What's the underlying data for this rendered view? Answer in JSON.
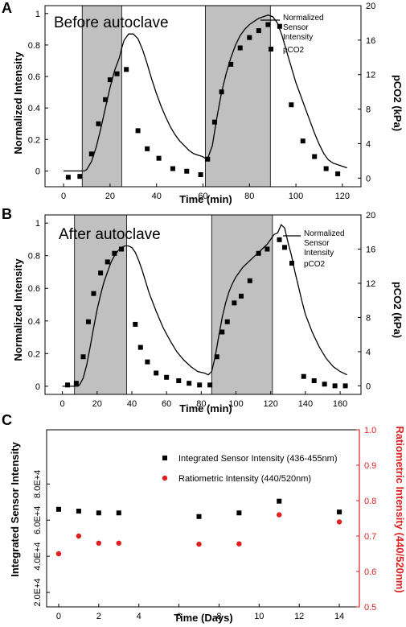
{
  "chart_data": [
    {
      "type": "line",
      "panel": "A",
      "inset_text": "Before autoclave",
      "xlabel": "Time (min)",
      "ylabel": "Normalized Intensity",
      "y2label": "pCO2 (kPa)",
      "xlim": [
        -8,
        128
      ],
      "ylim": [
        -0.1,
        1.05
      ],
      "y2lim": [
        -1,
        20
      ],
      "xticks": [
        0,
        20,
        40,
        60,
        80,
        100,
        120
      ],
      "yticks": [
        0,
        0.2,
        0.4,
        0.6,
        0.8,
        1
      ],
      "y2ticks": [
        0,
        4,
        8,
        12,
        16,
        20
      ],
      "shaded_intervals": [
        [
          8,
          25
        ],
        [
          61,
          89
        ]
      ],
      "legend_position": "top-right",
      "grid": false,
      "series": [
        {
          "name": "Normalized Sensor Intensity",
          "axis": "left",
          "style": "line",
          "x": [
            0,
            9,
            10,
            12,
            14,
            16,
            18,
            20,
            22,
            24,
            25,
            26,
            28,
            30,
            32,
            34,
            36,
            38,
            40,
            42,
            44,
            46,
            48,
            50,
            52,
            54,
            56,
            58,
            60,
            61,
            62,
            64,
            66,
            68,
            70,
            72,
            74,
            76,
            78,
            80,
            82,
            84,
            86,
            88,
            90,
            92,
            94,
            96,
            98,
            100,
            102,
            104,
            106,
            108,
            110,
            112,
            114,
            116,
            118,
            120,
            122
          ],
          "values": [
            0,
            0,
            0.01,
            0.06,
            0.15,
            0.27,
            0.4,
            0.53,
            0.64,
            0.72,
            0.78,
            0.83,
            0.87,
            0.87,
            0.84,
            0.77,
            0.68,
            0.58,
            0.49,
            0.41,
            0.34,
            0.28,
            0.23,
            0.19,
            0.16,
            0.13,
            0.11,
            0.1,
            0.09,
            0.08,
            0.08,
            0.16,
            0.34,
            0.5,
            0.62,
            0.72,
            0.8,
            0.86,
            0.9,
            0.93,
            0.95,
            0.97,
            0.98,
            0.99,
            0.98,
            0.94,
            0.86,
            0.76,
            0.66,
            0.56,
            0.48,
            0.4,
            0.32,
            0.24,
            0.17,
            0.11,
            0.07,
            0.05,
            0.04,
            0.03,
            0.02
          ]
        },
        {
          "name": "pCO2",
          "axis": "right",
          "style": "scatter",
          "x": [
            2,
            7,
            12,
            15,
            18,
            20,
            23,
            27,
            32,
            36,
            41,
            47,
            53,
            59,
            62,
            65,
            68,
            72,
            76,
            80,
            84,
            88,
            93,
            98,
            103,
            108,
            113,
            118
          ],
          "values": [
            0.1,
            0.2,
            2.8,
            6.3,
            9.1,
            11.4,
            12.1,
            12.6,
            5.5,
            3.4,
            2.3,
            1.1,
            0.8,
            0.4,
            2.2,
            6.5,
            10.0,
            13.2,
            15.1,
            16.3,
            17.1,
            17.8,
            17.6,
            8.5,
            4.3,
            2.5,
            1.1,
            0.5
          ]
        }
      ]
    },
    {
      "type": "line",
      "panel": "B",
      "inset_text": "After autoclave",
      "xlabel": "Time (min)",
      "ylabel": "Normalized Intensity",
      "y2label": "pCO2 (kPa)",
      "xlim": [
        -10,
        172
      ],
      "ylim": [
        -0.05,
        1.05
      ],
      "y2lim": [
        -1,
        20
      ],
      "xticks": [
        0,
        20,
        40,
        60,
        80,
        100,
        120,
        140,
        160
      ],
      "yticks": [
        0,
        0.2,
        0.4,
        0.6,
        0.8,
        1
      ],
      "y2ticks": [
        0,
        4,
        8,
        12,
        16,
        20
      ],
      "shaded_intervals": [
        [
          7,
          37
        ],
        [
          86,
          121
        ]
      ],
      "legend_position": "top-right",
      "grid": false,
      "series": [
        {
          "name": "Normalized Sensor Intensity",
          "axis": "left",
          "style": "line",
          "x": [
            0,
            9,
            10,
            12,
            14,
            16,
            18,
            20,
            22,
            24,
            26,
            28,
            30,
            32,
            34,
            36,
            38,
            40,
            42,
            44,
            46,
            48,
            50,
            54,
            58,
            62,
            66,
            70,
            74,
            78,
            82,
            84,
            86,
            88,
            90,
            92,
            94,
            96,
            98,
            100,
            102,
            104,
            106,
            108,
            110,
            112,
            114,
            116,
            118,
            120,
            122,
            124,
            126,
            128,
            130,
            132,
            134,
            136,
            138,
            140,
            144,
            148,
            152,
            156,
            160,
            164
          ],
          "values": [
            0,
            0,
            0.01,
            0.05,
            0.13,
            0.24,
            0.36,
            0.47,
            0.56,
            0.64,
            0.7,
            0.76,
            0.8,
            0.83,
            0.85,
            0.86,
            0.86,
            0.85,
            0.82,
            0.77,
            0.71,
            0.64,
            0.57,
            0.46,
            0.36,
            0.28,
            0.21,
            0.16,
            0.12,
            0.09,
            0.08,
            0.07,
            0.09,
            0.18,
            0.3,
            0.42,
            0.51,
            0.58,
            0.63,
            0.67,
            0.7,
            0.73,
            0.75,
            0.77,
            0.79,
            0.81,
            0.83,
            0.85,
            0.87,
            0.9,
            0.93,
            0.94,
            0.99,
            0.97,
            0.88,
            0.8,
            0.7,
            0.61,
            0.52,
            0.44,
            0.33,
            0.24,
            0.17,
            0.12,
            0.09,
            0.07
          ]
        },
        {
          "name": "pCO2",
          "axis": "right",
          "style": "scatter",
          "x": [
            3,
            8,
            12,
            15,
            18,
            22,
            26,
            30,
            34,
            42,
            45,
            49,
            54,
            60,
            67,
            73,
            79,
            85,
            89,
            92,
            95,
            99,
            103,
            108,
            113,
            118,
            125,
            128,
            139,
            145,
            151,
            157,
            163
          ],
          "values": [
            0.1,
            0.3,
            3.4,
            7.5,
            10.8,
            13.2,
            14.5,
            15.5,
            16.0,
            7.2,
            4.5,
            2.8,
            1.5,
            1.0,
            0.6,
            0.3,
            0.1,
            0.1,
            3.4,
            6.3,
            7.5,
            9.7,
            10.5,
            12.3,
            15.5,
            16.0,
            17.1,
            16.2,
            1.1,
            0.6,
            0.2,
            0.0,
            0.0
          ]
        }
      ]
    },
    {
      "type": "scatter",
      "panel": "C",
      "xlabel": "Time (Days)",
      "ylabel": "Integrated Sensor Intensity",
      "y2label": "Ratiometric Intensity (440/520nm)",
      "xlim": [
        -0.6,
        15
      ],
      "ylim": [
        12000,
        110000
      ],
      "y2lim": [
        0.5,
        1.0
      ],
      "xticks": [
        0,
        2,
        4,
        6,
        8,
        10,
        12,
        14
      ],
      "yticks": [
        "2.0E+4",
        "4.0E+4",
        "6.0E+4",
        "8.0E+4"
      ],
      "ytick_values": [
        20000,
        40000,
        60000,
        80000
      ],
      "y2ticks": [
        "0.5",
        "0.6",
        "0.7",
        "0.8",
        "0.9",
        "1.0"
      ],
      "y2tick_values": [
        0.5,
        0.6,
        0.7,
        0.8,
        0.9,
        1.0
      ],
      "colors": {
        "left_axis": "#000000",
        "right_axis": "#e02020"
      },
      "legend_position": "top-right",
      "grid": false,
      "series": [
        {
          "name": "Integrated Sensor Intensity (436-455nm)",
          "axis": "left",
          "marker": "square",
          "color": "#000000",
          "x": [
            0,
            1,
            2,
            3,
            7,
            9,
            11,
            14
          ],
          "values": [
            66000,
            65000,
            64000,
            64000,
            62000,
            64000,
            70500,
            64500
          ]
        },
        {
          "name": "Ratiometric Intensity (440/520nm)",
          "axis": "right",
          "marker": "circle",
          "color": "#e02020",
          "x": [
            0,
            1,
            2,
            3,
            7,
            9,
            11,
            14
          ],
          "values": [
            0.65,
            0.7,
            0.68,
            0.68,
            0.677,
            0.678,
            0.76,
            0.74
          ]
        }
      ]
    }
  ]
}
